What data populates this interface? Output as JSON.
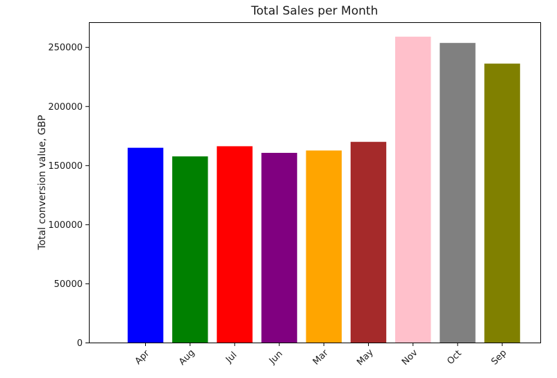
{
  "chart_data": {
    "type": "bar",
    "title": "Total Sales per Month",
    "xlabel": "",
    "ylabel": "Total conversion value, GBP",
    "categories": [
      "Apr",
      "Aug",
      "Jul",
      "Jun",
      "Mar",
      "May",
      "Nov",
      "Oct",
      "Sep"
    ],
    "values": [
      164800,
      157500,
      166100,
      160500,
      162500,
      169800,
      258800,
      253500,
      236000
    ],
    "colors": [
      "#0000ff",
      "#008000",
      "#ff0000",
      "#800080",
      "#ffa500",
      "#a52a2a",
      "#ffc0cb",
      "#808080",
      "#808000"
    ],
    "ylim": [
      0,
      271000
    ],
    "yticks": [
      0,
      50000,
      100000,
      150000,
      200000,
      250000
    ],
    "ytick_labels": [
      "0",
      "50000",
      "100000",
      "150000",
      "200000",
      "250000"
    ],
    "grid": false,
    "legend": "none"
  }
}
